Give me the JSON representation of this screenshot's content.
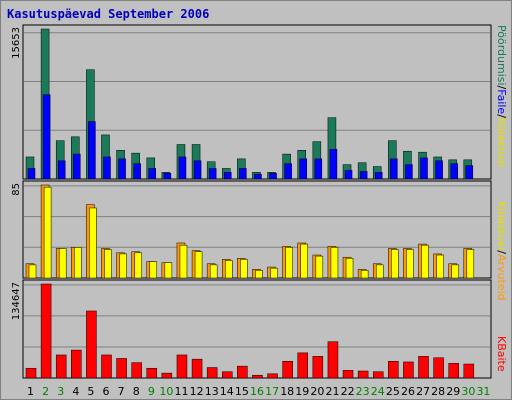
{
  "title": "Kasutuspäevad September 2006",
  "colors": {
    "background": "#c0c0c0",
    "title": "#0000c0",
    "bar_hits": "#1a7a5a",
    "bar_files": "#0000ff",
    "bar_pages": "#ff9900",
    "bar_visits": "#ffff00",
    "bar_kbytes": "#ff0000",
    "day_weekday": "#000000",
    "day_weekend": "#008000"
  },
  "chart_data": [
    {
      "type": "bar",
      "name": "top",
      "y_max_label": "15653",
      "ylim": [
        0,
        15653
      ],
      "grid": true,
      "categories": [
        "1",
        "2",
        "3",
        "4",
        "5",
        "6",
        "7",
        "8",
        "9",
        "10",
        "11",
        "12",
        "13",
        "14",
        "15",
        "16",
        "17",
        "18",
        "19",
        "20",
        "21",
        "22",
        "23",
        "24",
        "25",
        "26",
        "27",
        "28",
        "29",
        "30",
        "31"
      ],
      "weekend_days": [
        "2",
        "3",
        "9",
        "10",
        "16",
        "17",
        "23",
        "24",
        "30",
        "31"
      ],
      "series": [
        {
          "name": "Pöördumisi",
          "values": [
            2300,
            15653,
            4000,
            4400,
            11400,
            4600,
            3000,
            2700,
            2200,
            700,
            3600,
            3600,
            1800,
            1100,
            2100,
            700,
            700,
            2600,
            3000,
            3900,
            6400,
            1500,
            1700,
            1300,
            4000,
            2900,
            2800,
            2300,
            2000,
            2000,
            0
          ]
        },
        {
          "name": "Faile",
          "values": [
            1100,
            8800,
            1900,
            2600,
            6000,
            2300,
            2100,
            1600,
            1100,
            600,
            2300,
            1900,
            1100,
            700,
            1100,
            500,
            600,
            1600,
            2100,
            2100,
            3100,
            900,
            800,
            700,
            2100,
            1500,
            2200,
            1900,
            1600,
            1400,
            0
          ]
        }
      ]
    },
    {
      "type": "bar",
      "name": "middle",
      "y_max_label": "85",
      "ylim": [
        0,
        85
      ],
      "grid": true,
      "categories": [
        "1",
        "2",
        "3",
        "4",
        "5",
        "6",
        "7",
        "8",
        "9",
        "10",
        "11",
        "12",
        "13",
        "14",
        "15",
        "16",
        "17",
        "18",
        "19",
        "20",
        "21",
        "22",
        "23",
        "24",
        "25",
        "26",
        "27",
        "28",
        "29",
        "30",
        "31"
      ],
      "series": [
        {
          "name": "Külastusi",
          "values": [
            13,
            85,
            27,
            28,
            67,
            27,
            23,
            24,
            15,
            14,
            32,
            25,
            13,
            17,
            18,
            8,
            10,
            29,
            32,
            21,
            29,
            19,
            8,
            13,
            27,
            27,
            31,
            22,
            13,
            27,
            0
          ]
        },
        {
          "name": "Arvuteid",
          "values": [
            12,
            83,
            27,
            28,
            64,
            26,
            22,
            23,
            15,
            14,
            30,
            24,
            12,
            16,
            17,
            7,
            9,
            28,
            31,
            20,
            28,
            18,
            7,
            12,
            26,
            26,
            30,
            21,
            12,
            26,
            0
          ]
        }
      ]
    },
    {
      "type": "bar",
      "name": "bottom",
      "y_max_label": "134647",
      "ylim": [
        0,
        134647
      ],
      "grid": true,
      "categories": [
        "1",
        "2",
        "3",
        "4",
        "5",
        "6",
        "7",
        "8",
        "9",
        "10",
        "11",
        "12",
        "13",
        "14",
        "15",
        "16",
        "17",
        "18",
        "19",
        "20",
        "21",
        "22",
        "23",
        "24",
        "25",
        "26",
        "27",
        "28",
        "29",
        "30",
        "31"
      ],
      "series": [
        {
          "name": "KBaite",
          "values": [
            14000,
            134647,
            33000,
            40000,
            96000,
            33000,
            28000,
            22000,
            14000,
            7000,
            33000,
            27000,
            15000,
            9000,
            17000,
            4000,
            6000,
            24000,
            36000,
            31000,
            52000,
            11000,
            10000,
            9000,
            24000,
            23000,
            31000,
            29000,
            21000,
            20000,
            0
          ]
        }
      ]
    }
  ],
  "legend": {
    "top": {
      "hits": "Pöördumisi",
      "sep1": "/",
      "files": "Faile",
      "sep2": "/",
      "sites": "Külastusi"
    },
    "middle": {
      "visits": "Külastusi",
      "sep": "/",
      "sites": "Arvuteid"
    },
    "bottom": {
      "kbytes": "KBaite"
    }
  }
}
